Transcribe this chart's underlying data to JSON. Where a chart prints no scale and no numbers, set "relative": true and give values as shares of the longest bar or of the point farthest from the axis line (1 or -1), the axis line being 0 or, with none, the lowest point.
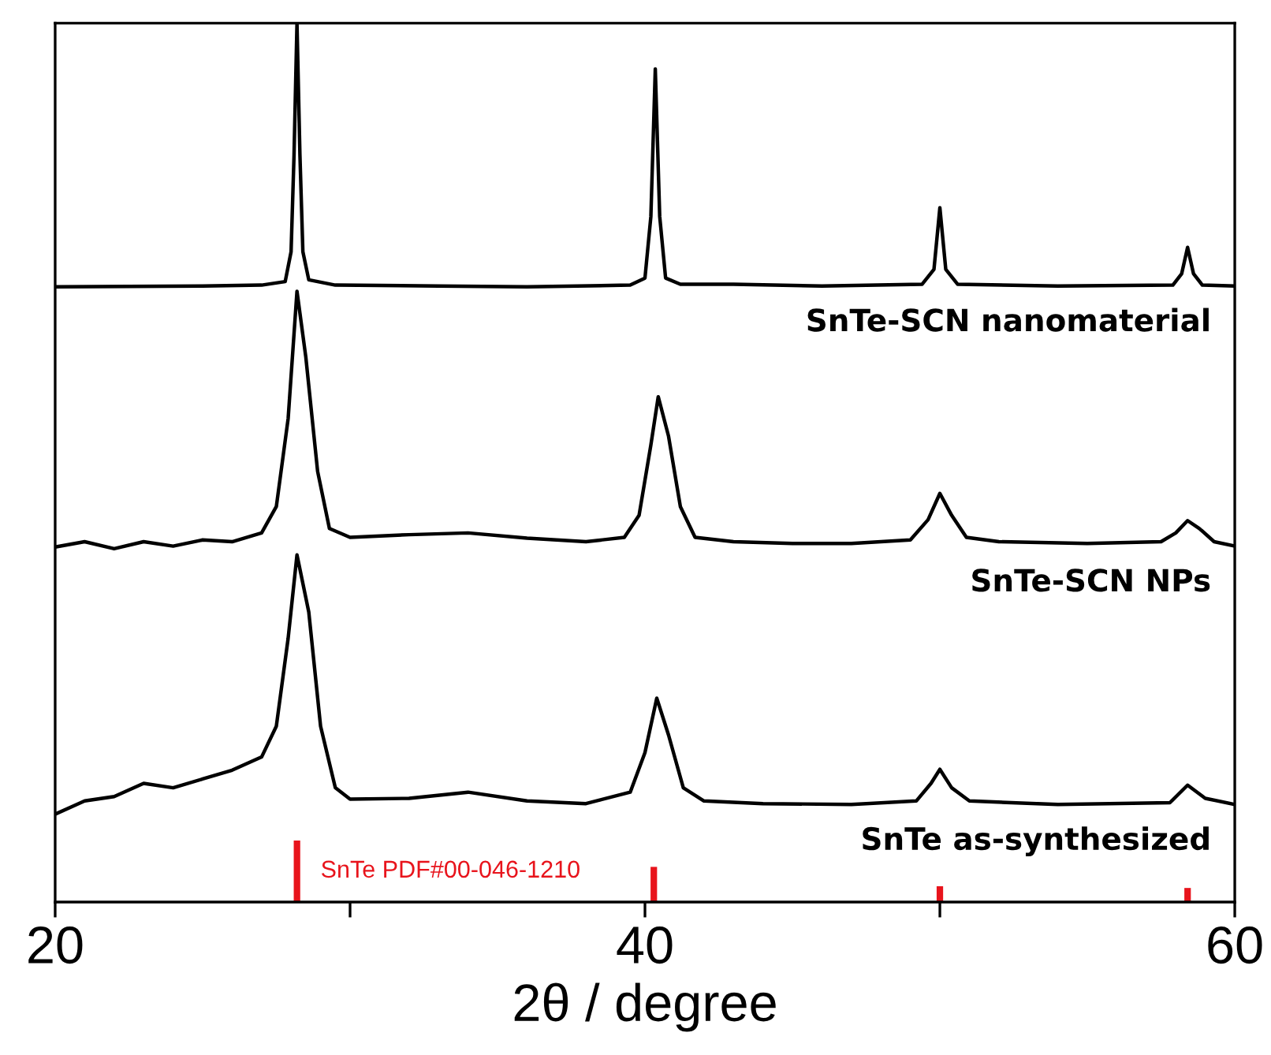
{
  "chart_data": {
    "type": "line",
    "relative": true,
    "xlabel": "2θ / degree",
    "xlim": [
      20,
      60
    ],
    "xticks": [
      20,
      {
        "value": 30,
        "label": null
      },
      40,
      {
        "value": 50,
        "label": null
      },
      60
    ],
    "tick_labels": "x",
    "legend": false,
    "grid": false,
    "series": [
      {
        "name": "SnTe-SCN nanomaterial",
        "color": "#000000",
        "x": [
          20,
          25,
          27,
          27.8,
          28.0,
          28.1,
          28.2,
          28.3,
          28.4,
          28.6,
          29.5,
          33,
          36,
          39.5,
          40.0,
          40.2,
          40.35,
          40.5,
          40.7,
          41.2,
          43,
          46,
          49.4,
          49.8,
          50.0,
          50.2,
          50.6,
          54,
          57.9,
          58.2,
          58.4,
          58.6,
          58.9,
          60
        ],
        "values": [
          0.7,
          0.701,
          0.702,
          0.706,
          0.74,
          0.85,
          1.0,
          0.85,
          0.74,
          0.708,
          0.702,
          0.701,
          0.7,
          0.702,
          0.71,
          0.78,
          0.948,
          0.78,
          0.71,
          0.703,
          0.703,
          0.701,
          0.703,
          0.72,
          0.79,
          0.72,
          0.703,
          0.701,
          0.702,
          0.715,
          0.745,
          0.715,
          0.702,
          0.701
        ]
      },
      {
        "name": "SnTe-SCN NPs",
        "color": "#000000",
        "x": [
          20,
          21,
          22,
          23,
          24,
          25,
          26,
          27,
          27.5,
          27.9,
          28.2,
          28.5,
          28.9,
          29.3,
          30,
          32,
          34,
          36,
          38,
          39.3,
          39.8,
          40.2,
          40.45,
          40.8,
          41.2,
          41.7,
          43,
          45,
          47,
          49.0,
          49.6,
          50.0,
          50.4,
          50.9,
          52,
          55,
          57.5,
          58.0,
          58.4,
          58.8,
          59.3,
          60
        ],
        "values": [
          0.404,
          0.41,
          0.402,
          0.41,
          0.405,
          0.412,
          0.41,
          0.42,
          0.45,
          0.55,
          0.695,
          0.62,
          0.49,
          0.425,
          0.415,
          0.418,
          0.42,
          0.414,
          0.41,
          0.415,
          0.44,
          0.52,
          0.575,
          0.53,
          0.45,
          0.415,
          0.41,
          0.408,
          0.408,
          0.412,
          0.435,
          0.465,
          0.44,
          0.415,
          0.41,
          0.408,
          0.41,
          0.42,
          0.434,
          0.425,
          0.41,
          0.405
        ]
      },
      {
        "name": "SnTe as-synthesized",
        "color": "#000000",
        "x": [
          20,
          21,
          22,
          23,
          24,
          25,
          26,
          27,
          27.5,
          27.9,
          28.2,
          28.6,
          29,
          29.5,
          30,
          32,
          34,
          36,
          38,
          39.5,
          40.0,
          40.4,
          40.8,
          41.3,
          42,
          44,
          47,
          49.2,
          49.7,
          50.0,
          50.4,
          51,
          54,
          57.8,
          58.4,
          59,
          60
        ],
        "values": [
          0.1,
          0.115,
          0.12,
          0.135,
          0.13,
          0.14,
          0.15,
          0.165,
          0.2,
          0.3,
          0.395,
          0.33,
          0.2,
          0.13,
          0.117,
          0.118,
          0.125,
          0.115,
          0.112,
          0.125,
          0.17,
          0.232,
          0.19,
          0.13,
          0.115,
          0.112,
          0.111,
          0.115,
          0.135,
          0.151,
          0.13,
          0.115,
          0.111,
          0.113,
          0.133,
          0.118,
          0.111
        ]
      },
      {
        "name": "SnTe PDF#00-046-1210",
        "type": "bar",
        "color": "#e8141c",
        "x": [
          28.2,
          40.3,
          50.0,
          58.4
        ],
        "values": [
          0.07,
          0.04,
          0.018,
          0.016
        ]
      }
    ]
  }
}
